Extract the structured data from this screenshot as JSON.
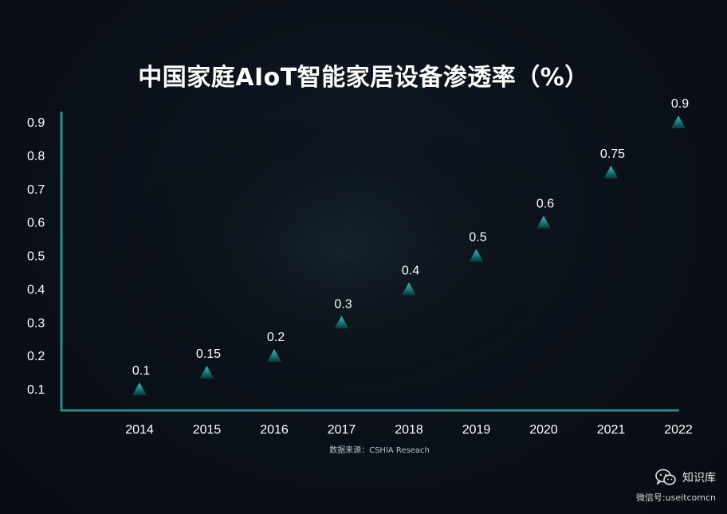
{
  "title": "中国家庭AIoT智能家居设备渗透率（%）",
  "source": "数据来源：CSHIA Reseach",
  "watermark": {
    "name": "知识库",
    "account": "微信号:useitcomcn",
    "icon": "wechat-icon"
  },
  "colors": {
    "axis": "#2a8a86",
    "marker_top": "#2fbcb4",
    "marker_bottom": "#0a3a3c"
  },
  "chart_data": {
    "type": "scatter",
    "title": "中国家庭AIoT智能家居设备渗透率（%）",
    "xlabel": "",
    "ylabel": "",
    "categories": [
      "2014",
      "2015",
      "2016",
      "2017",
      "2018",
      "2019",
      "2020",
      "2021",
      "2022"
    ],
    "values": [
      0.1,
      0.15,
      0.2,
      0.3,
      0.4,
      0.5,
      0.6,
      0.75,
      0.9
    ],
    "data_labels": [
      "0.1",
      "0.15",
      "0.2",
      "0.3",
      "0.4",
      "0.5",
      "0.6",
      "0.75",
      "0.9"
    ],
    "y_ticks": [
      "0.1",
      "0.2",
      "0.3",
      "0.4",
      "0.5",
      "0.6",
      "0.7",
      "0.8",
      "0.9"
    ],
    "ylim": [
      0.1,
      0.9
    ],
    "marker": "triangle",
    "grid": false,
    "legend": "none"
  }
}
